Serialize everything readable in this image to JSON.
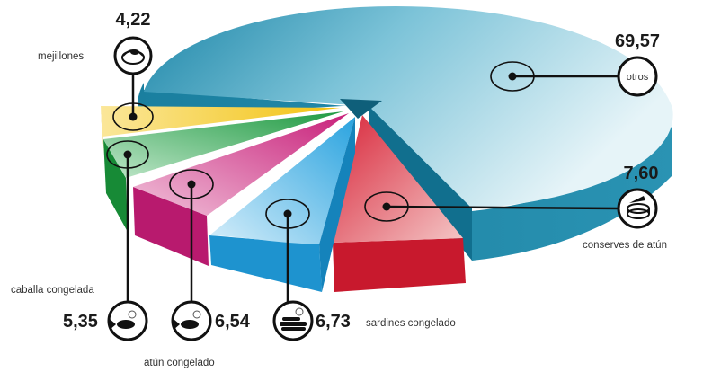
{
  "chart_data": {
    "type": "pie",
    "title": "",
    "unit": "",
    "slices": [
      {
        "label": "otros",
        "value": 69.57,
        "value_text": "69,57",
        "color": "#2a93b3",
        "icon": "none"
      },
      {
        "label": "conserves de atún",
        "value": 7.6,
        "value_text": "7,60",
        "color": "#d8263a",
        "icon": "tuna-can-icon"
      },
      {
        "label": "sardines congelado",
        "value": 6.73,
        "value_text": "6,73",
        "color": "#2aa3df",
        "icon": "sardines-icon"
      },
      {
        "label": "atún congelado",
        "value": 6.54,
        "value_text": "6,54",
        "color": "#c8207a",
        "icon": "fish-icon"
      },
      {
        "label": "caballa congelada",
        "value": 5.35,
        "value_text": "5,35",
        "color": "#1f9a42",
        "icon": "fish-icon"
      },
      {
        "label": "mejillones",
        "value": 4.22,
        "value_text": "4,22",
        "color": "#f2c20f",
        "icon": "mussel-icon"
      }
    ]
  }
}
